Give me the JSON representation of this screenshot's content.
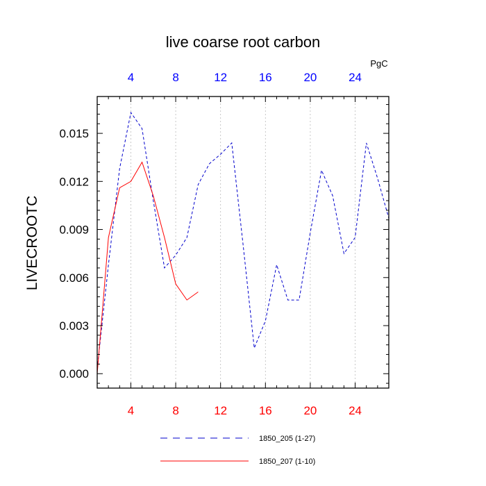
{
  "chart_data": {
    "type": "line",
    "title": "live coarse root carbon",
    "ylabel": "LIVECROOTC",
    "top_axis_unit": "PgC",
    "xlim": [
      1,
      27
    ],
    "ylim": [
      -0.0009,
      0.0173
    ],
    "x_ticks": [
      "4",
      "8",
      "12",
      "16",
      "20",
      "24"
    ],
    "x_tick_values": [
      4,
      8,
      12,
      16,
      20,
      24
    ],
    "y_ticks": [
      "0.000",
      "0.003",
      "0.006",
      "0.009",
      "0.012",
      "0.015"
    ],
    "y_tick_values": [
      0,
      0.003,
      0.006,
      0.009,
      0.012,
      0.015
    ],
    "grid": "vertical dotted lines at major x ticks",
    "legend_position": "bottom",
    "top_axis_color": "#0000ff",
    "bottom_axis_color": "#ff0000",
    "series": [
      {
        "name": "1850_205 (1-27)",
        "color": "#0000cc",
        "style": "dashed",
        "x": [
          1,
          2,
          3,
          4,
          5,
          6,
          7,
          8,
          9,
          10,
          11,
          12,
          13,
          14,
          15,
          16,
          17,
          18,
          19,
          20,
          21,
          22,
          23,
          24,
          25,
          26,
          27
        ],
        "values": [
          0.0003,
          0.0068,
          0.0128,
          0.0163,
          0.0153,
          0.0108,
          0.0066,
          0.0074,
          0.0085,
          0.0118,
          0.0131,
          0.0137,
          0.0144,
          0.0081,
          0.0016,
          0.0033,
          0.0068,
          0.0046,
          0.0046,
          0.0088,
          0.0127,
          0.0111,
          0.0075,
          0.0085,
          0.0144,
          0.0122,
          0.0097
        ]
      },
      {
        "name": "1850_207 (1-10)",
        "color": "#ff0000",
        "style": "solid",
        "x": [
          1,
          2,
          3,
          4,
          5,
          6,
          7,
          8,
          9,
          10
        ],
        "values": [
          0.0,
          0.0085,
          0.0116,
          0.012,
          0.0132,
          0.0111,
          0.0085,
          0.0056,
          0.0046,
          0.0051
        ]
      }
    ]
  }
}
